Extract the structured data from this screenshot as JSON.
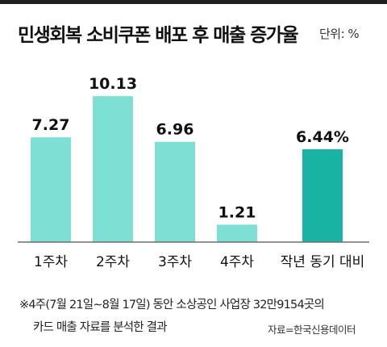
{
  "title": "민생회복 소비쿠폰 배포 후 매출 증가율",
  "unit_label": "단위: %",
  "chart_data": {
    "type": "bar",
    "categories": [
      "1주차",
      "2주차",
      "3주차",
      "4주차",
      "작년 동기 대비"
    ],
    "values": [
      7.27,
      10.13,
      6.96,
      1.21,
      6.44
    ],
    "value_labels": [
      "7.27",
      "10.13",
      "6.96",
      "1.21",
      "6.44%"
    ],
    "ylim": [
      0,
      11.2
    ],
    "colors": {
      "weekly": "#7ee0d4",
      "comparison": "#18b3a2",
      "baseline": "#6f6f6f"
    },
    "grid": false,
    "legend": "none"
  },
  "notes": {
    "line1": "※4주(7월 21일∼8월 17일) 동안 소상공인 사업장 32만9154곳의",
    "line2": "카드 매출 자료를 분석한 결과"
  },
  "source": "자료=한국신용데이터"
}
